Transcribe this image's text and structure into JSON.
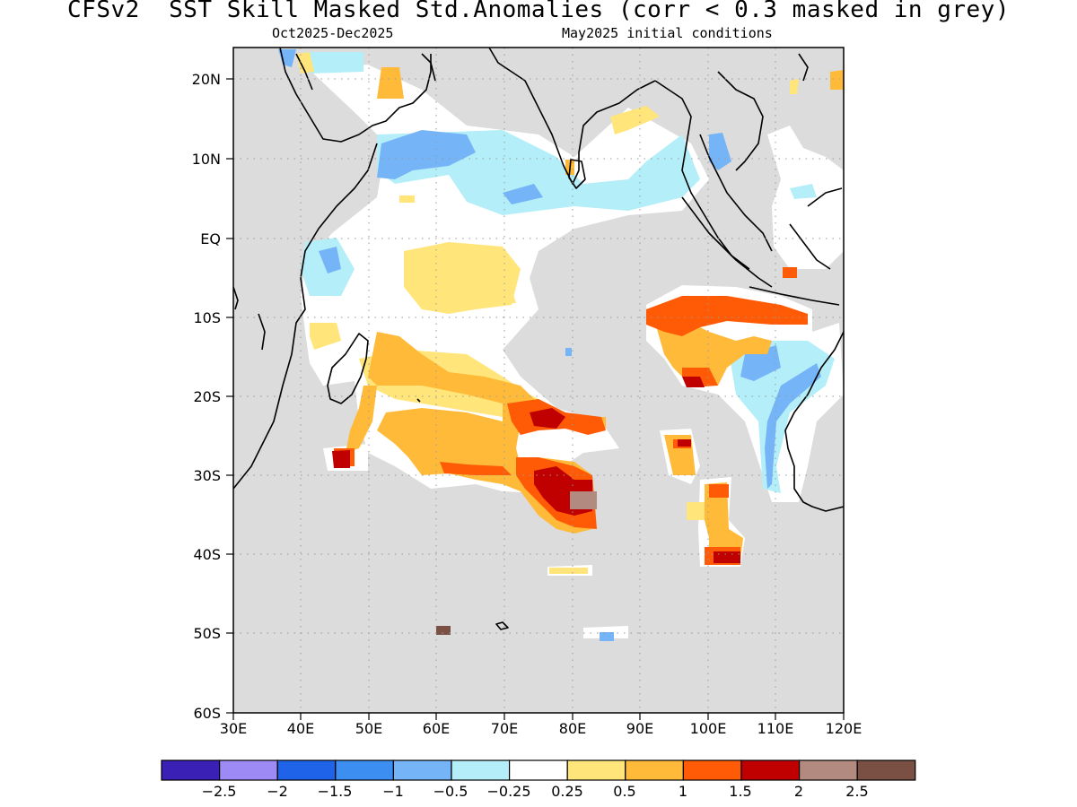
{
  "header": {
    "title": "CFSv2  SST Skill Masked Std.Anomalies (corr < 0.3 masked in grey)",
    "period": "Oct2025-Dec2025",
    "initial_conditions": "May2025 initial conditions"
  },
  "map": {
    "lat_labels": [
      "20N",
      "10N",
      "EQ",
      "10S",
      "20S",
      "30S",
      "40S",
      "50S",
      "60S"
    ],
    "lon_labels": [
      "30E",
      "40E",
      "50E",
      "60E",
      "70E",
      "80E",
      "90E",
      "100E",
      "110E",
      "120E"
    ],
    "mask_color": "#dcdcdc",
    "land_coast_color": "#000000"
  },
  "colorbar": {
    "colors": [
      "#3a20b4",
      "#9d8af4",
      "#1f64e8",
      "#3c8ef0",
      "#74b4f7",
      "#b4eef8",
      "#ffffff",
      "#ffe57a",
      "#ffba3a",
      "#ff5b06",
      "#c00000",
      "#b28a80",
      "#7a4f44"
    ],
    "labels": [
      "−2.5",
      "−2",
      "−1.5",
      "−1",
      "−0.5",
      "−0.25",
      "0.25",
      "0.5",
      "1",
      "1.5",
      "2",
      "2.5"
    ]
  }
}
